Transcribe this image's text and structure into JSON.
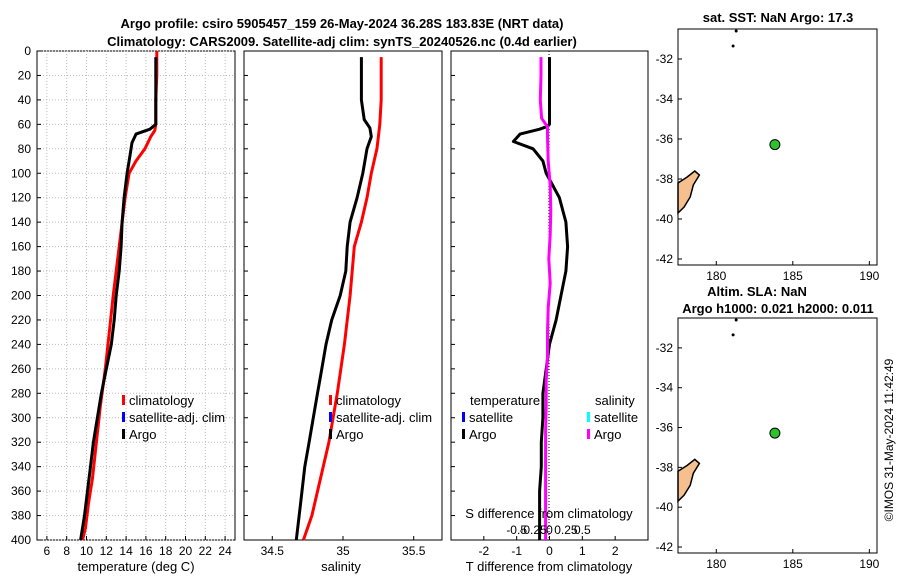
{
  "header": {
    "line1": "Argo profile: csiro 5905457_159 26-May-2024 36.28S 183.83E (NRT data)",
    "line2": "Climatology: CARS2009. Satellite-adj clim: synTS_20240526.nc (0.4d earlier)"
  },
  "depth_axis": {
    "label": "",
    "ticks": [
      0,
      20,
      40,
      60,
      80,
      100,
      120,
      140,
      160,
      180,
      200,
      220,
      240,
      260,
      280,
      300,
      320,
      340,
      360,
      380,
      400
    ],
    "range": [
      0,
      400
    ]
  },
  "colors": {
    "climatology": "#ff0000",
    "satellite_clim": "#0000ff",
    "argo": "#000000",
    "argo_salinity_diff": "#ff00ff",
    "satellite_salinity": "#00ffff",
    "land": "#f5c08d",
    "float_marker": "#2fc12f"
  },
  "chart_data": [
    {
      "type": "line",
      "id": "temperature",
      "xlabel": "temperature (deg C)",
      "xlim": [
        5,
        25
      ],
      "xticks": [
        6,
        8,
        10,
        12,
        14,
        16,
        18,
        20,
        22,
        24
      ],
      "ylim": [
        400,
        0
      ],
      "legend": [
        "climatology",
        "satellite-adj. clim",
        "Argo"
      ],
      "series": [
        {
          "name": "climatology",
          "color": "#ff0000",
          "x": [
            17.1,
            17.1,
            17.0,
            17.0,
            16.9,
            16.5,
            15.9,
            15.0,
            14.3,
            13.9,
            13.3,
            12.7,
            12.3,
            11.9,
            11.4,
            11.0,
            10.6,
            10.2,
            9.9,
            9.6
          ],
          "y": [
            0,
            20,
            40,
            60,
            65,
            70,
            80,
            90,
            100,
            120,
            160,
            200,
            230,
            260,
            290,
            320,
            350,
            370,
            390,
            400
          ]
        },
        {
          "name": "Argo",
          "color": "#000000",
          "x": [
            17.0,
            17.0,
            17.0,
            17.0,
            16.4,
            15.0,
            14.6,
            14.4,
            14.1,
            13.8,
            13.6,
            13.5,
            13.3,
            13.0,
            12.8,
            12.5,
            12.0,
            11.5,
            11.1,
            10.7,
            10.4,
            10.1,
            9.8,
            9.4
          ],
          "y": [
            5,
            20,
            40,
            60,
            64,
            68,
            75,
            85,
            100,
            120,
            140,
            160,
            180,
            200,
            220,
            240,
            260,
            280,
            300,
            320,
            340,
            360,
            380,
            400
          ]
        }
      ]
    },
    {
      "type": "line",
      "id": "salinity",
      "xlabel": "salinity",
      "xlim": [
        34.3,
        35.7
      ],
      "xticks": [
        34.5,
        35,
        35.5
      ],
      "ylim": [
        400,
        0
      ],
      "legend": [
        "climatology",
        "satellite-adj. clim",
        "Argo"
      ],
      "series": [
        {
          "name": "climatology",
          "color": "#ff0000",
          "x": [
            35.27,
            35.27,
            35.27,
            35.26,
            35.25,
            35.24,
            35.22,
            35.2,
            35.17,
            35.13,
            35.08,
            35.05,
            35.01,
            34.96,
            34.9,
            34.84,
            34.78,
            34.72
          ],
          "y": [
            5,
            20,
            40,
            60,
            70,
            80,
            90,
            100,
            120,
            140,
            160,
            200,
            240,
            280,
            320,
            350,
            380,
            400
          ]
        },
        {
          "name": "Argo",
          "color": "#000000",
          "x": [
            35.13,
            35.13,
            35.13,
            35.15,
            35.19,
            35.2,
            35.17,
            35.14,
            35.1,
            35.05,
            35.03,
            35.02,
            34.98,
            34.92,
            34.88,
            34.85,
            34.82,
            34.79,
            34.76,
            34.73,
            34.7,
            34.67
          ],
          "y": [
            5,
            20,
            40,
            56,
            63,
            70,
            80,
            100,
            120,
            140,
            160,
            180,
            200,
            220,
            240,
            260,
            280,
            300,
            320,
            340,
            370,
            400
          ]
        }
      ]
    },
    {
      "type": "line",
      "id": "difference",
      "xlabel": "T difference from climatology",
      "xlim": [
        -3,
        3
      ],
      "xticks": [
        -2,
        -1,
        0,
        1,
        2
      ],
      "top_xlabel": "S difference from climatology",
      "top_xticks": [
        "-0.5",
        "-0.25",
        "0",
        "0.25",
        "0.5"
      ],
      "ylim": [
        400,
        0
      ],
      "legend_temperature": {
        "title": "temperature",
        "items": [
          "satellite",
          "Argo"
        ]
      },
      "legend_salinity": {
        "title": "salinity",
        "items": [
          "satellite",
          "Argo"
        ]
      },
      "series": [
        {
          "name": "T difference Argo",
          "color": "#000000",
          "x": [
            0.0,
            0.0,
            0.0,
            0.0,
            -0.1,
            -0.3,
            -0.9,
            -1.1,
            -0.5,
            -0.2,
            -0.1,
            0.1,
            0.3,
            0.5,
            0.55,
            0.5,
            0.35,
            0.2,
            0.0,
            -0.1,
            -0.2,
            -0.2,
            -0.25,
            -0.25,
            -0.3,
            -0.3,
            -0.3
          ],
          "y": [
            5,
            20,
            40,
            60,
            62,
            64,
            68,
            74,
            80,
            90,
            100,
            110,
            120,
            140,
            160,
            180,
            200,
            220,
            240,
            260,
            280,
            300,
            320,
            340,
            360,
            380,
            400
          ]
        },
        {
          "name": "S difference Argo",
          "color": "#ff00ff",
          "x": [
            -0.13,
            -0.13,
            -0.14,
            -0.12,
            -0.03,
            -0.03,
            -0.02,
            0.01,
            0.02,
            0.01,
            -0.01,
            0.01,
            -0.02,
            -0.03,
            -0.03,
            -0.05,
            -0.05,
            -0.06,
            -0.06,
            -0.06,
            -0.06,
            -0.06
          ],
          "y": [
            5,
            20,
            40,
            55,
            62,
            70,
            90,
            110,
            130,
            150,
            170,
            190,
            210,
            230,
            250,
            270,
            290,
            310,
            330,
            350,
            380,
            400
          ]
        }
      ]
    },
    {
      "type": "scatter",
      "id": "map_sst",
      "title": "sat. SST: NaN Argo: 17.3",
      "xlim": [
        177.5,
        190.5
      ],
      "ylim": [
        -42.3,
        -30.5
      ],
      "xticks": [
        180,
        185,
        190
      ],
      "yticks": [
        -32,
        -34,
        -36,
        -38,
        -40,
        -42
      ],
      "points": [
        {
          "name": "Argo float",
          "x": 183.83,
          "y": -36.28
        }
      ]
    },
    {
      "type": "scatter",
      "id": "map_sla",
      "title": "Altim. SLA: NaN",
      "subtitle": "Argo h1000: 0.021 h2000: 0.011",
      "xlim": [
        177.5,
        190.5
      ],
      "ylim": [
        -42.3,
        -30.5
      ],
      "xticks": [
        180,
        185,
        190
      ],
      "yticks": [
        -32,
        -34,
        -36,
        -38,
        -40,
        -42
      ],
      "points": [
        {
          "name": "Argo float",
          "x": 183.83,
          "y": -36.28
        }
      ]
    }
  ],
  "footer": {
    "stamp": "©IMOS 31-May-2024 11:42:49"
  }
}
